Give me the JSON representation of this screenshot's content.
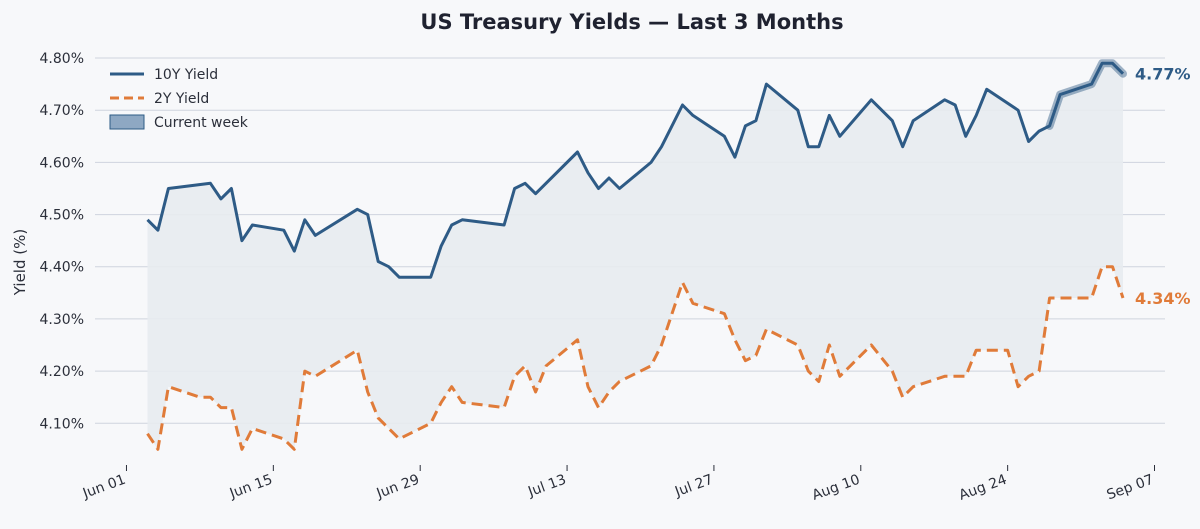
{
  "chart_data": {
    "type": "line",
    "title": "US Treasury Yields — Last 3 Months",
    "ylabel": "Yield (%)",
    "xlabel": "",
    "ylim": [
      4.02,
      4.825
    ],
    "xlim": [
      "2025-05-29",
      "2025-09-08"
    ],
    "x_ticks": [
      "2025-06-01",
      "2025-06-15",
      "2025-06-29",
      "2025-07-13",
      "2025-07-27",
      "2025-08-10",
      "2025-08-24",
      "2025-09-07"
    ],
    "x_tick_labels": [
      "Jun 01",
      "Jun 15",
      "Jun 29",
      "Jul 13",
      "Jul 27",
      "Aug 10",
      "Aug 24",
      "Sep 07"
    ],
    "y_ticks": [
      4.1,
      4.2,
      4.3,
      4.4,
      4.5,
      4.6,
      4.7,
      4.8
    ],
    "y_tick_labels": [
      "4.10%",
      "4.20%",
      "4.30%",
      "4.40%",
      "4.50%",
      "4.60%",
      "4.70%",
      "4.80%"
    ],
    "grid": "horizontal",
    "legend": "top-left",
    "legend_entries": [
      "10Y Yield",
      "2Y Yield",
      "Current week"
    ],
    "colors": {
      "ten_year": "#2e5b86",
      "two_year": "#e07b39",
      "fill": "#e7ebf0",
      "grid": "#cfd4de",
      "background": "#f7f8fa"
    },
    "series": [
      {
        "name": "10Y Yield",
        "style": "solid",
        "end_label": "4.77%",
        "points": [
          [
            "2025-06-03",
            4.49
          ],
          [
            "2025-06-04",
            4.47
          ],
          [
            "2025-06-05",
            4.55
          ],
          [
            "2025-06-09",
            4.56
          ],
          [
            "2025-06-10",
            4.53
          ],
          [
            "2025-06-11",
            4.55
          ],
          [
            "2025-06-12",
            4.45
          ],
          [
            "2025-06-13",
            4.48
          ],
          [
            "2025-06-16",
            4.47
          ],
          [
            "2025-06-17",
            4.43
          ],
          [
            "2025-06-18",
            4.49
          ],
          [
            "2025-06-19",
            4.46
          ],
          [
            "2025-06-23",
            4.51
          ],
          [
            "2025-06-24",
            4.5
          ],
          [
            "2025-06-25",
            4.41
          ],
          [
            "2025-06-26",
            4.4
          ],
          [
            "2025-06-27",
            4.38
          ],
          [
            "2025-06-30",
            4.38
          ],
          [
            "2025-07-01",
            4.44
          ],
          [
            "2025-07-02",
            4.48
          ],
          [
            "2025-07-03",
            4.49
          ],
          [
            "2025-07-07",
            4.48
          ],
          [
            "2025-07-08",
            4.55
          ],
          [
            "2025-07-09",
            4.56
          ],
          [
            "2025-07-10",
            4.54
          ],
          [
            "2025-07-14",
            4.62
          ],
          [
            "2025-07-15",
            4.58
          ],
          [
            "2025-07-16",
            4.55
          ],
          [
            "2025-07-17",
            4.57
          ],
          [
            "2025-07-18",
            4.55
          ],
          [
            "2025-07-21",
            4.6
          ],
          [
            "2025-07-22",
            4.63
          ],
          [
            "2025-07-24",
            4.71
          ],
          [
            "2025-07-25",
            4.69
          ],
          [
            "2025-07-28",
            4.65
          ],
          [
            "2025-07-29",
            4.61
          ],
          [
            "2025-07-30",
            4.67
          ],
          [
            "2025-07-31",
            4.68
          ],
          [
            "2025-08-01",
            4.75
          ],
          [
            "2025-08-04",
            4.7
          ],
          [
            "2025-08-05",
            4.63
          ],
          [
            "2025-08-06",
            4.63
          ],
          [
            "2025-08-07",
            4.69
          ],
          [
            "2025-08-08",
            4.65
          ],
          [
            "2025-08-11",
            4.72
          ],
          [
            "2025-08-13",
            4.68
          ],
          [
            "2025-08-14",
            4.63
          ],
          [
            "2025-08-15",
            4.68
          ],
          [
            "2025-08-18",
            4.72
          ],
          [
            "2025-08-19",
            4.71
          ],
          [
            "2025-08-20",
            4.65
          ],
          [
            "2025-08-21",
            4.69
          ],
          [
            "2025-08-22",
            4.74
          ],
          [
            "2025-08-25",
            4.7
          ],
          [
            "2025-08-26",
            4.64
          ],
          [
            "2025-08-27",
            4.66
          ],
          [
            "2025-08-28",
            4.67
          ],
          [
            "2025-08-29",
            4.73
          ],
          [
            "2025-09-01",
            4.75
          ],
          [
            "2025-09-02",
            4.79
          ],
          [
            "2025-09-03",
            4.79
          ],
          [
            "2025-09-04",
            4.77
          ]
        ]
      },
      {
        "name": "2Y Yield",
        "style": "dashed",
        "end_label": "4.34%",
        "points": [
          [
            "2025-06-03",
            4.08
          ],
          [
            "2025-06-04",
            4.05
          ],
          [
            "2025-06-05",
            4.17
          ],
          [
            "2025-06-08",
            4.15
          ],
          [
            "2025-06-09",
            4.15
          ],
          [
            "2025-06-10",
            4.13
          ],
          [
            "2025-06-11",
            4.13
          ],
          [
            "2025-06-12",
            4.05
          ],
          [
            "2025-06-13",
            4.09
          ],
          [
            "2025-06-16",
            4.07
          ],
          [
            "2025-06-17",
            4.05
          ],
          [
            "2025-06-18",
            4.2
          ],
          [
            "2025-06-19",
            4.19
          ],
          [
            "2025-06-23",
            4.24
          ],
          [
            "2025-06-24",
            4.16
          ],
          [
            "2025-06-25",
            4.11
          ],
          [
            "2025-06-27",
            4.07
          ],
          [
            "2025-06-30",
            4.1
          ],
          [
            "2025-07-01",
            4.14
          ],
          [
            "2025-07-02",
            4.17
          ],
          [
            "2025-07-03",
            4.14
          ],
          [
            "2025-07-07",
            4.13
          ],
          [
            "2025-07-08",
            4.19
          ],
          [
            "2025-07-09",
            4.21
          ],
          [
            "2025-07-10",
            4.16
          ],
          [
            "2025-07-11",
            4.21
          ],
          [
            "2025-07-14",
            4.26
          ],
          [
            "2025-07-15",
            4.17
          ],
          [
            "2025-07-16",
            4.13
          ],
          [
            "2025-07-17",
            4.16
          ],
          [
            "2025-07-18",
            4.18
          ],
          [
            "2025-07-21",
            4.21
          ],
          [
            "2025-07-22",
            4.25
          ],
          [
            "2025-07-24",
            4.37
          ],
          [
            "2025-07-25",
            4.33
          ],
          [
            "2025-07-28",
            4.31
          ],
          [
            "2025-07-29",
            4.26
          ],
          [
            "2025-07-30",
            4.22
          ],
          [
            "2025-07-31",
            4.23
          ],
          [
            "2025-08-01",
            4.28
          ],
          [
            "2025-08-04",
            4.25
          ],
          [
            "2025-08-05",
            4.2
          ],
          [
            "2025-08-06",
            4.18
          ],
          [
            "2025-08-07",
            4.25
          ],
          [
            "2025-08-08",
            4.19
          ],
          [
            "2025-08-11",
            4.25
          ],
          [
            "2025-08-13",
            4.2
          ],
          [
            "2025-08-14",
            4.15
          ],
          [
            "2025-08-15",
            4.17
          ],
          [
            "2025-08-18",
            4.19
          ],
          [
            "2025-08-19",
            4.19
          ],
          [
            "2025-08-20",
            4.19
          ],
          [
            "2025-08-21",
            4.24
          ],
          [
            "2025-08-24",
            4.24
          ],
          [
            "2025-08-25",
            4.17
          ],
          [
            "2025-08-26",
            4.19
          ],
          [
            "2025-08-27",
            4.2
          ],
          [
            "2025-08-28",
            4.34
          ],
          [
            "2025-09-01",
            4.34
          ],
          [
            "2025-09-02",
            4.4
          ],
          [
            "2025-09-03",
            4.4
          ],
          [
            "2025-09-04",
            4.34
          ]
        ]
      }
    ],
    "highlight": {
      "label": "Current week",
      "start": "2025-08-28",
      "end": "2025-09-04",
      "series": "10Y Yield"
    }
  }
}
